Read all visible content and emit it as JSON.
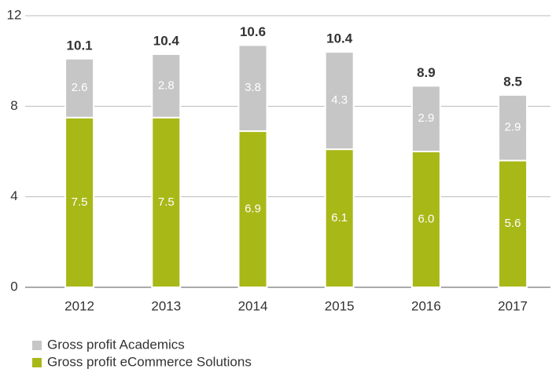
{
  "chart_data": {
    "type": "stacked_bar",
    "categories": [
      "2012",
      "2013",
      "2014",
      "2015",
      "2016",
      "2017"
    ],
    "series": [
      {
        "name": "Gross profit eCommerce Solutions",
        "color": "#a8b817",
        "values": [
          7.5,
          7.5,
          6.9,
          6.1,
          6.0,
          5.6
        ],
        "value_labels": [
          "7.5",
          "7.5",
          "6.9",
          "6.1",
          "6.0",
          "5.6"
        ]
      },
      {
        "name": "Gross profit Academics",
        "color": "#c6c6c6",
        "values": [
          2.6,
          2.8,
          3.8,
          4.3,
          2.9,
          2.9
        ],
        "value_labels": [
          "2.6",
          "2.8",
          "3.8",
          "4.3",
          "2.9",
          "2.9"
        ]
      }
    ],
    "totals": [
      10.1,
      10.4,
      10.6,
      10.4,
      8.9,
      8.5
    ],
    "ylim": [
      0,
      12
    ],
    "yticks": [
      0,
      4,
      8,
      12
    ],
    "grid": true
  }
}
